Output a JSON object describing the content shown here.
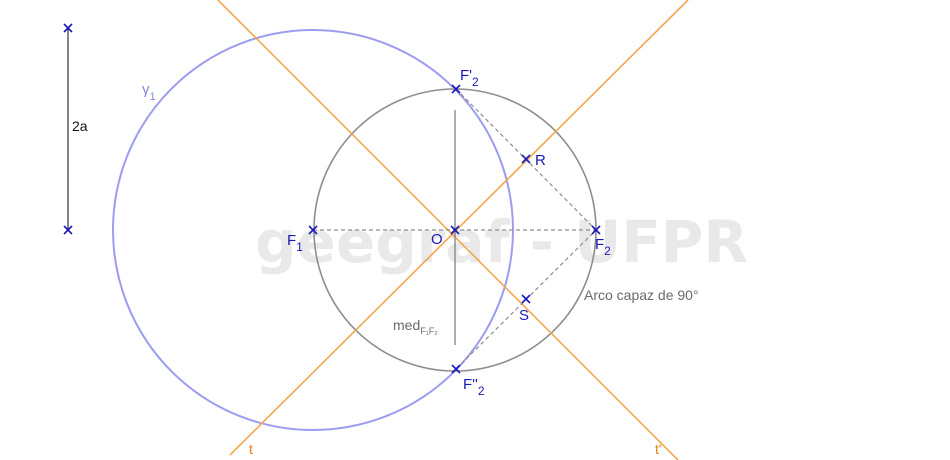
{
  "watermark": "geegraf - UFPR",
  "colors": {
    "construction": "#8e8e8e",
    "gamma_circle": "#9c9cf0",
    "tangent_lines": "#f5a54a",
    "point_marks": "#1a1ab8"
  },
  "labels": {
    "segment": "2a",
    "gamma": {
      "main": "γ",
      "sub": "1"
    },
    "f1": {
      "main": "F",
      "sub": "1"
    },
    "f2": {
      "main": "F",
      "sub": "2"
    },
    "f2_prime": {
      "main": "F'",
      "sub": "2"
    },
    "f2_double_prime": {
      "main": "F''",
      "sub": "2"
    },
    "o": "O",
    "r": "R",
    "s": "S",
    "mediatrix": {
      "main": "med",
      "sub": "F₁F₂"
    },
    "arco_capaz": "Arco capaz de 90°",
    "t": "t",
    "t_prime": "t'"
  }
}
